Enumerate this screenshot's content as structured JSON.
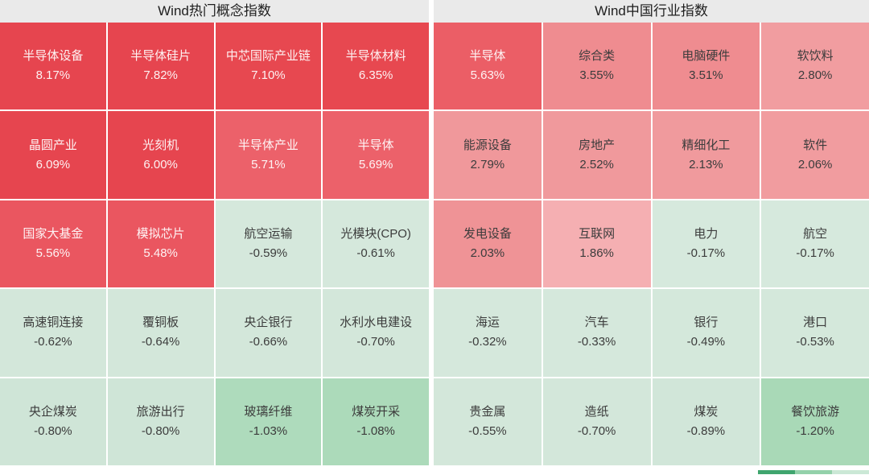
{
  "chart_data": [
    {
      "type": "heatmap",
      "title": "Wind热门概念指数",
      "columns": 4,
      "rows": 5,
      "value_unit": "%",
      "cells": [
        {
          "label": "半导体设备",
          "value": 8.17,
          "display": "8.17%",
          "bg": "#E6454F",
          "text": "light"
        },
        {
          "label": "半导体硅片",
          "value": 7.82,
          "display": "7.82%",
          "bg": "#E6454F",
          "text": "light"
        },
        {
          "label": "中芯国际产业链",
          "value": 7.1,
          "display": "7.10%",
          "bg": "#E74850",
          "text": "light"
        },
        {
          "label": "半导体材料",
          "value": 6.35,
          "display": "6.35%",
          "bg": "#E74850",
          "text": "light"
        },
        {
          "label": "晶圆产业",
          "value": 6.09,
          "display": "6.09%",
          "bg": "#E6454F",
          "text": "light"
        },
        {
          "label": "光刻机",
          "value": 6.0,
          "display": "6.00%",
          "bg": "#E6454F",
          "text": "light"
        },
        {
          "label": "半导体产业",
          "value": 5.71,
          "display": "5.71%",
          "bg": "#EC616A",
          "text": "light"
        },
        {
          "label": "半导体",
          "value": 5.69,
          "display": "5.69%",
          "bg": "#EC616A",
          "text": "light"
        },
        {
          "label": "国家大基金",
          "value": 5.56,
          "display": "5.56%",
          "bg": "#EA5660",
          "text": "light"
        },
        {
          "label": "模拟芯片",
          "value": 5.48,
          "display": "5.48%",
          "bg": "#EA5660",
          "text": "light"
        },
        {
          "label": "航空运输",
          "value": -0.59,
          "display": "-0.59%",
          "bg": "#D5E8DC",
          "text": "dark"
        },
        {
          "label": "光模块(CPO)",
          "value": -0.61,
          "display": "-0.61%",
          "bg": "#D5E8DC",
          "text": "dark"
        },
        {
          "label": "高速铜连接",
          "value": -0.62,
          "display": "-0.62%",
          "bg": "#D3E7DA",
          "text": "dark"
        },
        {
          "label": "覆铜板",
          "value": -0.64,
          "display": "-0.64%",
          "bg": "#D3E7DA",
          "text": "dark"
        },
        {
          "label": "央企银行",
          "value": -0.66,
          "display": "-0.66%",
          "bg": "#D3E7DA",
          "text": "dark"
        },
        {
          "label": "水利水电建设",
          "value": -0.7,
          "display": "-0.70%",
          "bg": "#D3E7DA",
          "text": "dark"
        },
        {
          "label": "央企煤炭",
          "value": -0.8,
          "display": "-0.80%",
          "bg": "#CFE5D7",
          "text": "dark"
        },
        {
          "label": "旅游出行",
          "value": -0.8,
          "display": "-0.80%",
          "bg": "#CFE5D7",
          "text": "dark"
        },
        {
          "label": "玻璃纤维",
          "value": -1.03,
          "display": "-1.03%",
          "bg": "#AEDBBC",
          "text": "dark"
        },
        {
          "label": "煤炭开采",
          "value": -1.08,
          "display": "-1.08%",
          "bg": "#ACDABA",
          "text": "dark"
        }
      ]
    },
    {
      "type": "heatmap",
      "title": "Wind中国行业指数",
      "columns": 4,
      "rows": 5,
      "value_unit": "%",
      "cells": [
        {
          "label": "半导体",
          "value": 5.63,
          "display": "5.63%",
          "bg": "#EB5E66",
          "text": "light"
        },
        {
          "label": "综合类",
          "value": 3.55,
          "display": "3.55%",
          "bg": "#EF8C90",
          "text": "dark"
        },
        {
          "label": "电脑硬件",
          "value": 3.51,
          "display": "3.51%",
          "bg": "#EF8C90",
          "text": "dark"
        },
        {
          "label": "软饮料",
          "value": 2.8,
          "display": "2.80%",
          "bg": "#F19DA0",
          "text": "dark"
        },
        {
          "label": "能源设备",
          "value": 2.79,
          "display": "2.79%",
          "bg": "#F0989B",
          "text": "dark"
        },
        {
          "label": "房地产",
          "value": 2.52,
          "display": "2.52%",
          "bg": "#F0999C",
          "text": "dark"
        },
        {
          "label": "精细化工",
          "value": 2.13,
          "display": "2.13%",
          "bg": "#F09A9D",
          "text": "dark"
        },
        {
          "label": "软件",
          "value": 2.06,
          "display": "2.06%",
          "bg": "#F19C9F",
          "text": "dark"
        },
        {
          "label": "发电设备",
          "value": 2.03,
          "display": "2.03%",
          "bg": "#EF9396",
          "text": "dark"
        },
        {
          "label": "互联网",
          "value": 1.86,
          "display": "1.86%",
          "bg": "#F5AFB2",
          "text": "dark"
        },
        {
          "label": "电力",
          "value": -0.17,
          "display": "-0.17%",
          "bg": "#D6E9DD",
          "text": "dark"
        },
        {
          "label": "航空",
          "value": -0.17,
          "display": "-0.17%",
          "bg": "#D6E9DD",
          "text": "dark"
        },
        {
          "label": "海运",
          "value": -0.32,
          "display": "-0.32%",
          "bg": "#D5E8DC",
          "text": "dark"
        },
        {
          "label": "汽车",
          "value": -0.33,
          "display": "-0.33%",
          "bg": "#D5E8DC",
          "text": "dark"
        },
        {
          "label": "银行",
          "value": -0.49,
          "display": "-0.49%",
          "bg": "#D4E8DB",
          "text": "dark"
        },
        {
          "label": "港口",
          "value": -0.53,
          "display": "-0.53%",
          "bg": "#D4E8DB",
          "text": "dark"
        },
        {
          "label": "贵金属",
          "value": -0.55,
          "display": "-0.55%",
          "bg": "#D3E7DA",
          "text": "dark"
        },
        {
          "label": "造纸",
          "value": -0.7,
          "display": "-0.70%",
          "bg": "#D3E7DA",
          "text": "dark"
        },
        {
          "label": "煤炭",
          "value": -0.89,
          "display": "-0.89%",
          "bg": "#D1E6D9",
          "text": "dark"
        },
        {
          "label": "餐饮旅游",
          "value": -1.2,
          "display": "-1.20%",
          "bg": "#A9D9B7",
          "text": "dark"
        }
      ]
    }
  ],
  "colors": {
    "positive_strong": "#E6454F",
    "positive_weak": "#F5AFB2",
    "negative_weak": "#D6E9DD",
    "negative_strong": "#A9D9B7",
    "title_bar_bg": "#EAEAEA",
    "grid_line": "#FFFFFF"
  },
  "legend": {
    "segments": [
      "#3FA56E",
      "#93D1AA",
      "#CBE8D6"
    ]
  }
}
